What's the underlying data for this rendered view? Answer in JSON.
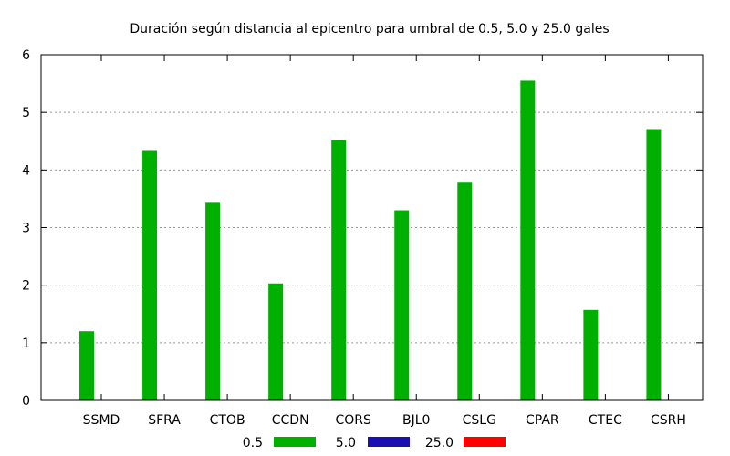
{
  "chart_data": {
    "type": "bar",
    "title": "Duración según distancia al epicentro para umbral de 0.5, 5.0 y 25.0 gales",
    "xlabel": "",
    "ylabel": "",
    "ylim": [
      0,
      6
    ],
    "yticks": [
      "0",
      "1",
      "2",
      "3",
      "4",
      "5",
      "6"
    ],
    "grid": true,
    "legend_position": "bottom",
    "categories": [
      "SSMD",
      "SFRA",
      "CTOB",
      "CCDN",
      "CORS",
      "BJL0",
      "CSLG",
      "CPAR",
      "CTEC",
      "CSRH"
    ],
    "series": [
      {
        "name": "0.5",
        "color": "#00b000",
        "values": [
          1.2,
          4.33,
          3.43,
          2.03,
          4.52,
          3.3,
          3.78,
          5.55,
          1.57,
          4.71
        ]
      },
      {
        "name": "5.0",
        "color": "#1a0fb0",
        "values": [
          0,
          0,
          0,
          0,
          0,
          0,
          0,
          0,
          0,
          0
        ]
      },
      {
        "name": "25.0",
        "color": "#ff0000",
        "values": [
          0,
          0,
          0,
          0,
          0,
          0,
          0,
          0,
          0,
          0
        ]
      }
    ]
  }
}
